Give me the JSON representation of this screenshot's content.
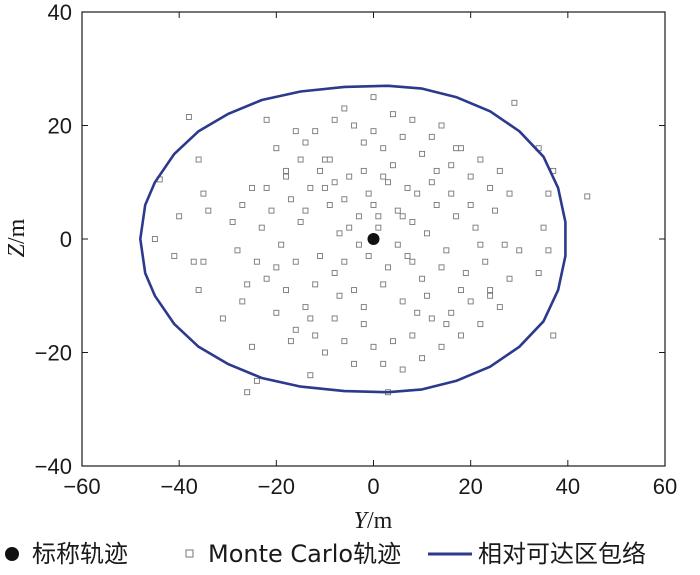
{
  "chart_data": {
    "type": "scatter",
    "title": "",
    "xlabel": "Y/m",
    "ylabel": "Z/m",
    "xlim": [
      -60,
      60
    ],
    "ylim": [
      -40,
      40
    ],
    "xticks": [
      -60,
      -40,
      -20,
      0,
      20,
      40,
      60
    ],
    "yticks": [
      -40,
      -20,
      0,
      20,
      40
    ],
    "grid": false,
    "legend_position": "bottom",
    "colors": {
      "nominal": "#111111",
      "monte_carlo": "#777777",
      "envelope": "#2b3a8c"
    },
    "series": [
      {
        "name": "标称轨迹",
        "kind": "point",
        "marker": "filled-circle",
        "points": [
          [
            0,
            0
          ]
        ]
      },
      {
        "name": "Monte Carlo轨迹",
        "kind": "scatter",
        "marker": "open-square",
        "points": [
          [
            -38,
            21.5
          ],
          [
            -36,
            14
          ],
          [
            -35,
            8
          ],
          [
            -34,
            5
          ],
          [
            -35,
            -4
          ],
          [
            -36,
            -9
          ],
          [
            -37,
            -4
          ],
          [
            -45,
            0
          ],
          [
            -44,
            10.5
          ],
          [
            -41,
            -3
          ],
          [
            -40,
            4
          ],
          [
            -31,
            -14
          ],
          [
            -27,
            -11
          ],
          [
            -25,
            -19
          ],
          [
            -26,
            -27
          ],
          [
            -24,
            -25
          ],
          [
            -22,
            21
          ],
          [
            -20,
            16
          ],
          [
            -18,
            11
          ],
          [
            -16,
            19
          ],
          [
            -14,
            17
          ],
          [
            -12,
            19
          ],
          [
            -10,
            14
          ],
          [
            -8,
            21
          ],
          [
            -6,
            23
          ],
          [
            -4,
            20
          ],
          [
            -2,
            17
          ],
          [
            0,
            19
          ],
          [
            2,
            16
          ],
          [
            4,
            22
          ],
          [
            6,
            18
          ],
          [
            8,
            21
          ],
          [
            10,
            15
          ],
          [
            12,
            18
          ],
          [
            14,
            20
          ],
          [
            16,
            13
          ],
          [
            18,
            16
          ],
          [
            20,
            11
          ],
          [
            22,
            14
          ],
          [
            24,
            9
          ],
          [
            26,
            12
          ],
          [
            28,
            8
          ],
          [
            29,
            24
          ],
          [
            34,
            16
          ],
          [
            36,
            8
          ],
          [
            37,
            12
          ],
          [
            35,
            2
          ],
          [
            36,
            -2
          ],
          [
            34,
            -6
          ],
          [
            37,
            -17
          ],
          [
            44,
            7.5
          ],
          [
            30,
            -2
          ],
          [
            28,
            -7
          ],
          [
            26,
            -12
          ],
          [
            24,
            -9
          ],
          [
            22,
            -15
          ],
          [
            20,
            -11
          ],
          [
            18,
            -17
          ],
          [
            16,
            -13
          ],
          [
            14,
            -19
          ],
          [
            12,
            -14
          ],
          [
            10,
            -21
          ],
          [
            8,
            -17
          ],
          [
            6,
            -23
          ],
          [
            4,
            -18
          ],
          [
            3,
            -27
          ],
          [
            2,
            -22
          ],
          [
            0,
            -19
          ],
          [
            -2,
            -15
          ],
          [
            -4,
            -22
          ],
          [
            -6,
            -18
          ],
          [
            -8,
            -14
          ],
          [
            -10,
            -20
          ],
          [
            -12,
            -17
          ],
          [
            -13,
            -24
          ],
          [
            -14,
            -12
          ],
          [
            -16,
            -16
          ],
          [
            -18,
            -9
          ],
          [
            -20,
            -13
          ],
          [
            -22,
            -7
          ],
          [
            -24,
            -4
          ],
          [
            -26,
            -8
          ],
          [
            -28,
            -2
          ],
          [
            -29,
            3
          ],
          [
            -27,
            6
          ],
          [
            -25,
            9
          ],
          [
            -23,
            2
          ],
          [
            -21,
            5
          ],
          [
            -19,
            -1
          ],
          [
            -17,
            7
          ],
          [
            -15,
            3
          ],
          [
            -13,
            9
          ],
          [
            -11,
            -3
          ],
          [
            -9,
            6
          ],
          [
            -7,
            1
          ],
          [
            -5,
            11
          ],
          [
            -3,
            4
          ],
          [
            -1,
            8
          ],
          [
            1,
            2
          ],
          [
            3,
            10
          ],
          [
            5,
            5
          ],
          [
            7,
            -3
          ],
          [
            9,
            8
          ],
          [
            11,
            1
          ],
          [
            13,
            6
          ],
          [
            15,
            -2
          ],
          [
            17,
            4
          ],
          [
            19,
            -6
          ],
          [
            21,
            2
          ],
          [
            23,
            -4
          ],
          [
            25,
            5
          ],
          [
            27,
            -1
          ],
          [
            -10,
            9
          ],
          [
            -8,
            -6
          ],
          [
            -6,
            7
          ],
          [
            -4,
            -9
          ],
          [
            -2,
            12
          ],
          [
            2,
            -8
          ],
          [
            4,
            13
          ],
          [
            6,
            -11
          ],
          [
            8,
            3
          ],
          [
            10,
            -7
          ],
          [
            12,
            10
          ],
          [
            14,
            -5
          ],
          [
            16,
            8
          ],
          [
            -12,
            -8
          ],
          [
            -14,
            5
          ],
          [
            -16,
            -4
          ],
          [
            -18,
            12
          ],
          [
            -20,
            -5
          ],
          [
            -22,
            9
          ],
          [
            18,
            -9
          ],
          [
            20,
            6
          ],
          [
            22,
            -1
          ],
          [
            24,
            -10
          ],
          [
            -1,
            -3
          ],
          [
            1,
            4
          ],
          [
            -3,
            -1
          ],
          [
            3,
            -5
          ],
          [
            0,
            6
          ],
          [
            -5,
            2
          ],
          [
            5,
            -1
          ],
          [
            -7,
            -10
          ],
          [
            7,
            9
          ],
          [
            -9,
            14
          ],
          [
            9,
            -13
          ],
          [
            -11,
            12
          ],
          [
            11,
            -10
          ],
          [
            -13,
            -14
          ],
          [
            13,
            12
          ],
          [
            -15,
            14
          ],
          [
            15,
            -15
          ],
          [
            -17,
            -18
          ],
          [
            17,
            16
          ],
          [
            0,
            25
          ],
          [
            -2,
            -12
          ],
          [
            2,
            11
          ],
          [
            -6,
            -4
          ],
          [
            6,
            4
          ],
          [
            -8,
            10
          ],
          [
            8,
            -4
          ]
        ]
      },
      {
        "name": "相对可达区包络",
        "kind": "closed-curve",
        "points": [
          [
            -48,
            0
          ],
          [
            -47,
            6
          ],
          [
            -45,
            10
          ],
          [
            -41,
            15
          ],
          [
            -36,
            19
          ],
          [
            -30,
            22
          ],
          [
            -23,
            24.5
          ],
          [
            -15,
            26
          ],
          [
            -6,
            26.8
          ],
          [
            3,
            27
          ],
          [
            10,
            26.5
          ],
          [
            17,
            25
          ],
          [
            24,
            22.5
          ],
          [
            30,
            19
          ],
          [
            35,
            14.5
          ],
          [
            38,
            9
          ],
          [
            39.5,
            3
          ],
          [
            39.5,
            -3
          ],
          [
            38,
            -9
          ],
          [
            35,
            -14.5
          ],
          [
            30,
            -19
          ],
          [
            24,
            -22.5
          ],
          [
            17,
            -25
          ],
          [
            10,
            -26.5
          ],
          [
            3,
            -27
          ],
          [
            -6,
            -26.8
          ],
          [
            -15,
            -26
          ],
          [
            -23,
            -24.5
          ],
          [
            -30,
            -22
          ],
          [
            -36,
            -19
          ],
          [
            -41,
            -15
          ],
          [
            -45,
            -10
          ],
          [
            -47,
            -6
          ]
        ]
      }
    ]
  }
}
